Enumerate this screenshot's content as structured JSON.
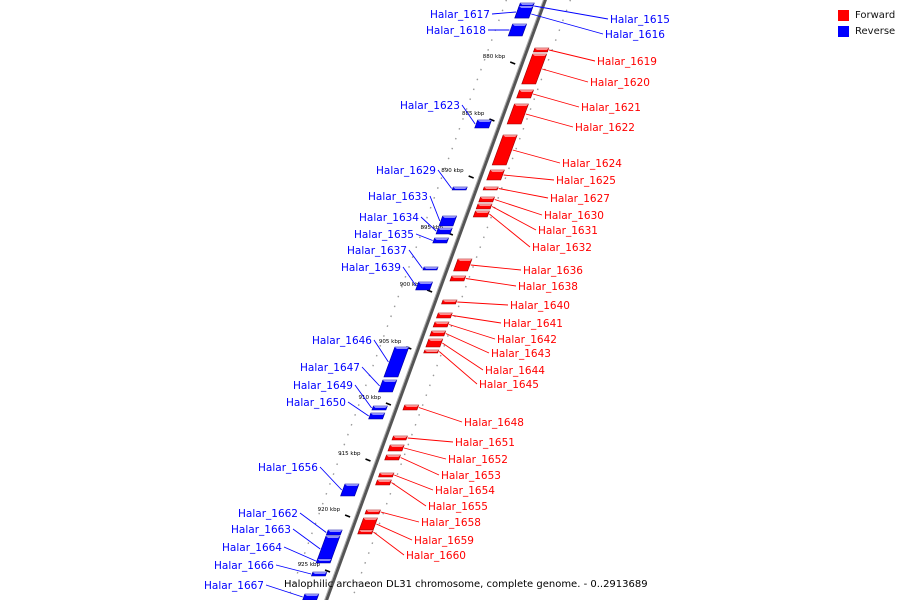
{
  "legend": {
    "forward_label": "Forward",
    "reverse_label": "Reverse",
    "forward_color": "#ff0000",
    "reverse_color": "#0000ff"
  },
  "caption": "Halophilic archaeon DL31 chromosome, complete genome. - 0..2913689",
  "scale_ticks": [
    "880 kbp",
    "885 kbp",
    "890 kbp",
    "895 kbp",
    "900 kbp",
    "905 kbp",
    "910 kbp",
    "915 kbp",
    "920 kbp",
    "925 kbp"
  ],
  "genes": [
    {
      "label": "Halar_1615",
      "strand": "reverse",
      "side": "right"
    },
    {
      "label": "Halar_1616",
      "strand": "reverse",
      "side": "right"
    },
    {
      "label": "Halar_1617",
      "strand": "reverse",
      "side": "left"
    },
    {
      "label": "Halar_1618",
      "strand": "reverse",
      "side": "left"
    },
    {
      "label": "Halar_1619",
      "strand": "forward",
      "side": "right"
    },
    {
      "label": "Halar_1620",
      "strand": "forward",
      "side": "right"
    },
    {
      "label": "Halar_1621",
      "strand": "forward",
      "side": "right"
    },
    {
      "label": "Halar_1622",
      "strand": "forward",
      "side": "right"
    },
    {
      "label": "Halar_1623",
      "strand": "reverse",
      "side": "left"
    },
    {
      "label": "Halar_1624",
      "strand": "forward",
      "side": "right"
    },
    {
      "label": "Halar_1625",
      "strand": "forward",
      "side": "right"
    },
    {
      "label": "Halar_1627",
      "strand": "forward",
      "side": "right"
    },
    {
      "label": "Halar_1629",
      "strand": "reverse",
      "side": "left"
    },
    {
      "label": "Halar_1630",
      "strand": "forward",
      "side": "right"
    },
    {
      "label": "Halar_1631",
      "strand": "forward",
      "side": "right"
    },
    {
      "label": "Halar_1632",
      "strand": "forward",
      "side": "right"
    },
    {
      "label": "Halar_1633",
      "strand": "reverse",
      "side": "left"
    },
    {
      "label": "Halar_1634",
      "strand": "reverse",
      "side": "left"
    },
    {
      "label": "Halar_1635",
      "strand": "reverse",
      "side": "left"
    },
    {
      "label": "Halar_1636",
      "strand": "forward",
      "side": "right"
    },
    {
      "label": "Halar_1637",
      "strand": "reverse",
      "side": "left"
    },
    {
      "label": "Halar_1638",
      "strand": "forward",
      "side": "right"
    },
    {
      "label": "Halar_1639",
      "strand": "reverse",
      "side": "left"
    },
    {
      "label": "Halar_1640",
      "strand": "forward",
      "side": "right"
    },
    {
      "label": "Halar_1641",
      "strand": "forward",
      "side": "right"
    },
    {
      "label": "Halar_1642",
      "strand": "forward",
      "side": "right"
    },
    {
      "label": "Halar_1643",
      "strand": "forward",
      "side": "right"
    },
    {
      "label": "Halar_1644",
      "strand": "forward",
      "side": "right"
    },
    {
      "label": "Halar_1645",
      "strand": "forward",
      "side": "right"
    },
    {
      "label": "Halar_1646",
      "strand": "reverse",
      "side": "left"
    },
    {
      "label": "Halar_1647",
      "strand": "reverse",
      "side": "left"
    },
    {
      "label": "Halar_1648",
      "strand": "forward",
      "side": "right"
    },
    {
      "label": "Halar_1649",
      "strand": "reverse",
      "side": "left"
    },
    {
      "label": "Halar_1650",
      "strand": "reverse",
      "side": "left"
    },
    {
      "label": "Halar_1651",
      "strand": "forward",
      "side": "right"
    },
    {
      "label": "Halar_1652",
      "strand": "forward",
      "side": "right"
    },
    {
      "label": "Halar_1653",
      "strand": "forward",
      "side": "right"
    },
    {
      "label": "Halar_1654",
      "strand": "forward",
      "side": "right"
    },
    {
      "label": "Halar_1655",
      "strand": "forward",
      "side": "right"
    },
    {
      "label": "Halar_1656",
      "strand": "reverse",
      "side": "left"
    },
    {
      "label": "Halar_1658",
      "strand": "forward",
      "side": "right"
    },
    {
      "label": "Halar_1659",
      "strand": "forward",
      "side": "right"
    },
    {
      "label": "Halar_1660",
      "strand": "forward",
      "side": "right"
    },
    {
      "label": "Halar_1662",
      "strand": "reverse",
      "side": "left"
    },
    {
      "label": "Halar_1663",
      "strand": "reverse",
      "side": "left"
    },
    {
      "label": "Halar_1664",
      "strand": "reverse",
      "side": "left"
    },
    {
      "label": "Halar_1666",
      "strand": "reverse",
      "side": "left"
    },
    {
      "label": "Halar_1667",
      "strand": "reverse",
      "side": "left"
    }
  ]
}
